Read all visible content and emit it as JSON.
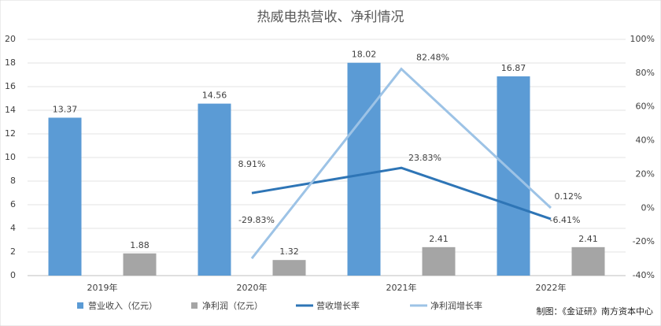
{
  "chart_data": {
    "type": "bar-line",
    "title": "热威电热营收、净利情况",
    "categories": [
      "2019年",
      "2020年",
      "2021年",
      "2022年"
    ],
    "series": [
      {
        "name": "营业收入（亿元）",
        "type": "bar",
        "color": "#5b9bd5",
        "values": [
          13.37,
          14.56,
          18.02,
          16.87
        ]
      },
      {
        "name": "净利润（亿元）",
        "type": "bar",
        "color": "#a5a5a5",
        "values": [
          1.88,
          1.32,
          2.41,
          2.41
        ]
      },
      {
        "name": "营收增长率",
        "type": "line",
        "axis": "y2",
        "color": "#2e75b6",
        "values": [
          null,
          8.91,
          23.83,
          -6.41
        ],
        "value_labels": [
          null,
          "8.91%",
          "23.83%",
          "-6.41%"
        ]
      },
      {
        "name": "净利润增长率",
        "type": "line",
        "axis": "y2",
        "color": "#9dc3e6",
        "values": [
          null,
          -29.83,
          82.48,
          0.12
        ],
        "value_labels": [
          null,
          "-29.83%",
          "82.48%",
          "0.12%"
        ]
      }
    ],
    "ylim": [
      0,
      20
    ],
    "yticks": [
      0,
      2,
      4,
      6,
      8,
      10,
      12,
      14,
      16,
      18,
      20
    ],
    "y2lim": [
      -40,
      100
    ],
    "y2ticks": [
      {
        "value": -40,
        "label": "-40%"
      },
      {
        "value": -20,
        "label": "-20%"
      },
      {
        "value": 0,
        "label": "0%"
      },
      {
        "value": 20,
        "label": "20%"
      },
      {
        "value": 40,
        "label": "40%"
      },
      {
        "value": 60,
        "label": "60%"
      },
      {
        "value": 80,
        "label": "80%"
      },
      {
        "value": 100,
        "label": "100%"
      }
    ],
    "grid": true,
    "legend": "bottom",
    "source": "制图：《金证研》南方资本中心"
  }
}
